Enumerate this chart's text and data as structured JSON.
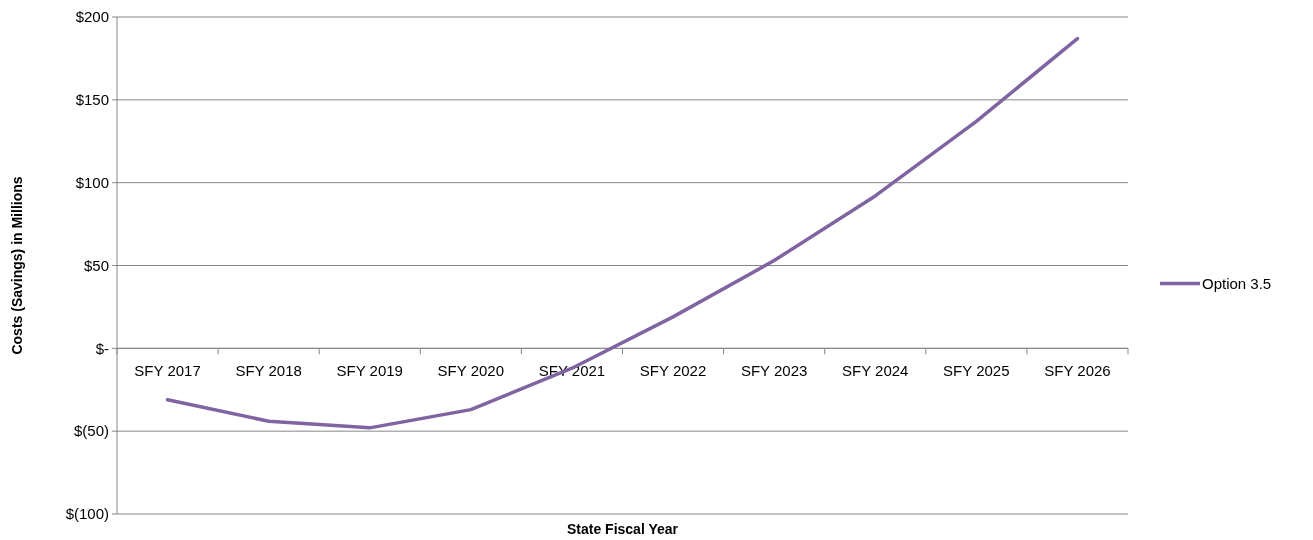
{
  "chart_data": {
    "type": "line",
    "xlabel": "State Fiscal Year",
    "ylabel": "Costs (Savings) in Millions",
    "categories": [
      "SFY 2017",
      "SFY 2018",
      "SFY 2019",
      "SFY 2020",
      "SFY 2021",
      "SFY 2022",
      "SFY 2023",
      "SFY 2024",
      "SFY 2025",
      "SFY 2026"
    ],
    "series": [
      {
        "name": "Option 3.5",
        "color": "#8064a2",
        "values": [
          -31,
          -44,
          -48,
          -37,
          -12,
          19,
          53,
          92,
          137,
          187
        ]
      }
    ],
    "ylim": [
      -100,
      200
    ],
    "yticks": [
      {
        "value": -100,
        "label": "$(100)"
      },
      {
        "value": -50,
        "label": "$(50)"
      },
      {
        "value": 0,
        "label": "$-"
      },
      {
        "value": 50,
        "label": "$50"
      },
      {
        "value": 100,
        "label": "$100"
      },
      {
        "value": 150,
        "label": "$150"
      },
      {
        "value": 200,
        "label": "$200"
      }
    ],
    "grid": "y",
    "legend": "right",
    "marker": "none",
    "line_style": "solid"
  }
}
